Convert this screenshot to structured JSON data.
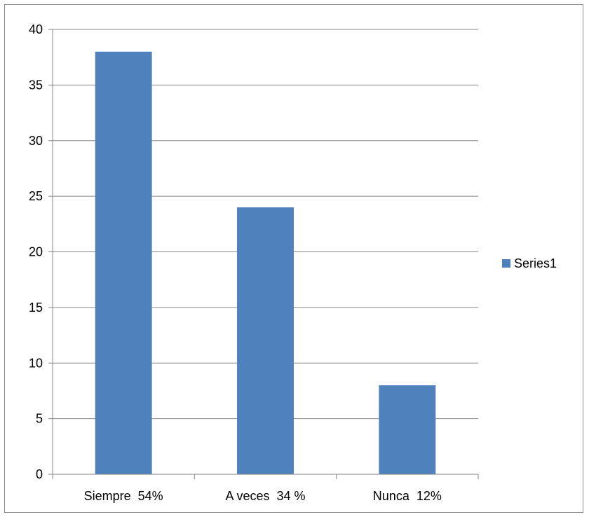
{
  "chart_data": {
    "type": "bar",
    "categories": [
      "Siempre  54%",
      "A veces  34 %",
      "Nunca  12%"
    ],
    "series": [
      {
        "name": "Series1",
        "values": [
          38,
          24,
          8
        ],
        "color": "#4F81BD"
      }
    ],
    "title": "",
    "xlabel": "",
    "ylabel": "",
    "ylim": [
      0,
      40
    ],
    "yticks": [
      0,
      5,
      10,
      15,
      20,
      25,
      30,
      35,
      40
    ],
    "grid": true,
    "legend": "right"
  }
}
